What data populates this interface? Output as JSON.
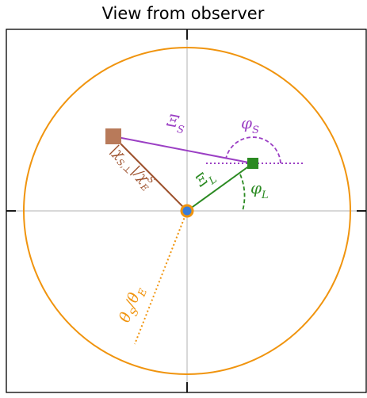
{
  "title": "View from observer",
  "labels": {
    "xi_s": "Ξ",
    "xi_s_sub": "S",
    "phi_s": "φ",
    "phi_s_sub": "S",
    "xi_l": "Ξ",
    "xi_l_sub": "L",
    "phi_l": "φ",
    "phi_l_sub": "L",
    "chi_ratio": "|χ",
    "chi_sub": "S,⊥",
    "chi_rest": "|/χ",
    "chi_rest_sub": "S",
    "chi_rest_sub2": "E",
    "theta": "θ",
    "theta_sub": "S",
    "theta_rest": "/θ",
    "theta_rest_sub": "E"
  },
  "colors": {
    "circle": "#f0940e",
    "source": "#b87a5a",
    "source_link": "#9c4f2a",
    "xi_s": "#9b3fc4",
    "lens": "#2b8a22",
    "origin_fill": "#3a7dd8",
    "axis": "#b0b0b0"
  }
}
